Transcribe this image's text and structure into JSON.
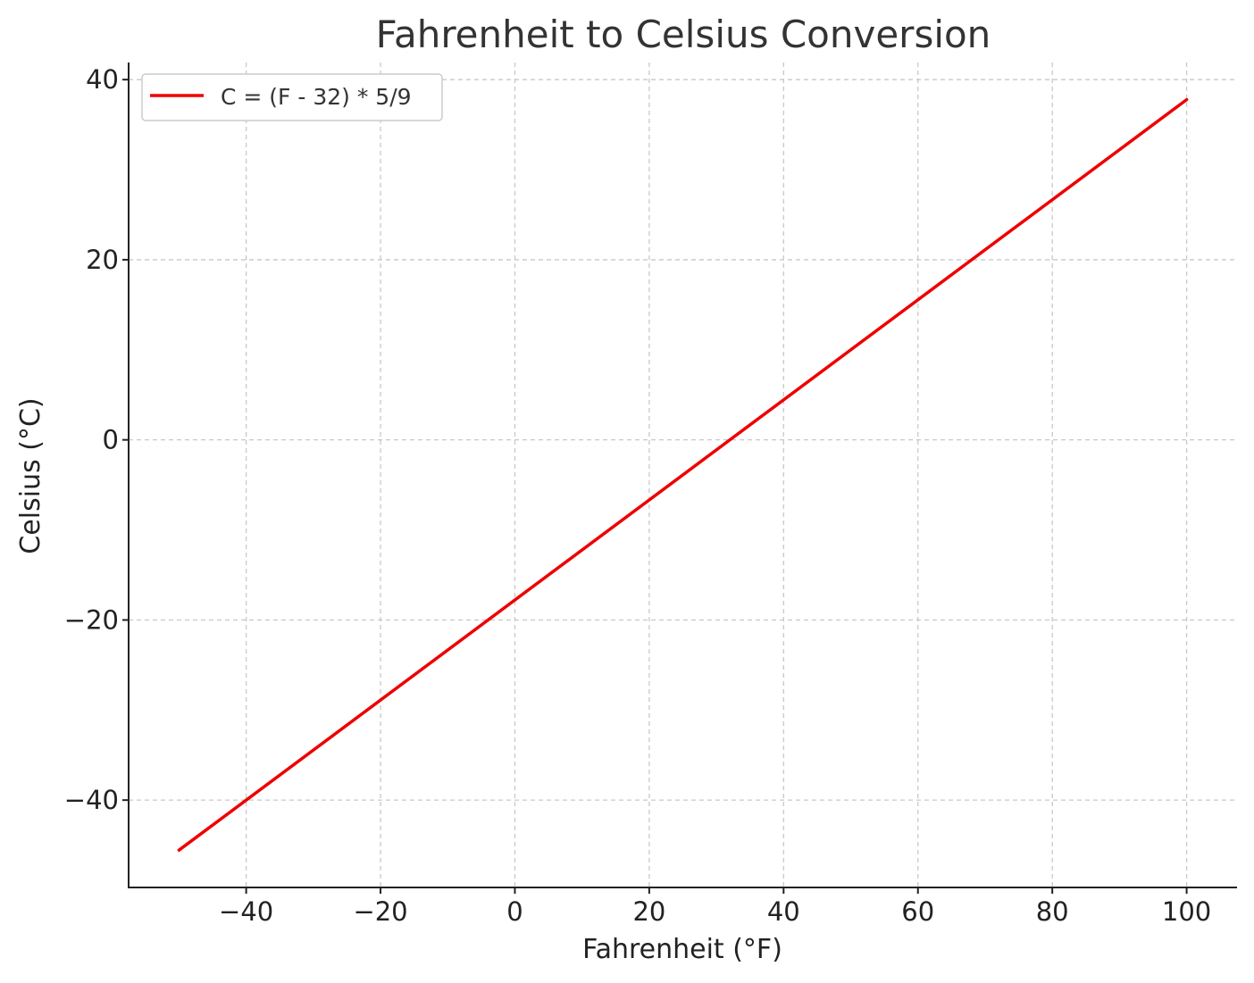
{
  "chart_data": {
    "type": "line",
    "title": "Fahrenheit to Celsius Conversion",
    "xlabel": "Fahrenheit (°F)",
    "ylabel": "Celsius (°C)",
    "xlim": [
      -57.5,
      107.5
    ],
    "ylim": [
      -49.7,
      41.9
    ],
    "xticks": [
      -40,
      -20,
      0,
      20,
      40,
      60,
      80,
      100
    ],
    "yticks": [
      -40,
      -20,
      0,
      20,
      40
    ],
    "xtick_labels": [
      "−40",
      "−20",
      "0",
      "20",
      "40",
      "60",
      "80",
      "100"
    ],
    "ytick_labels": [
      "−40",
      "−20",
      "0",
      "20",
      "40"
    ],
    "grid": true,
    "legend_position": "top-left",
    "series": [
      {
        "name": "C = (F - 32) * 5/9",
        "color": "#ee0000",
        "x": [
          -50,
          100
        ],
        "y": [
          -45.56,
          37.78
        ]
      }
    ]
  }
}
